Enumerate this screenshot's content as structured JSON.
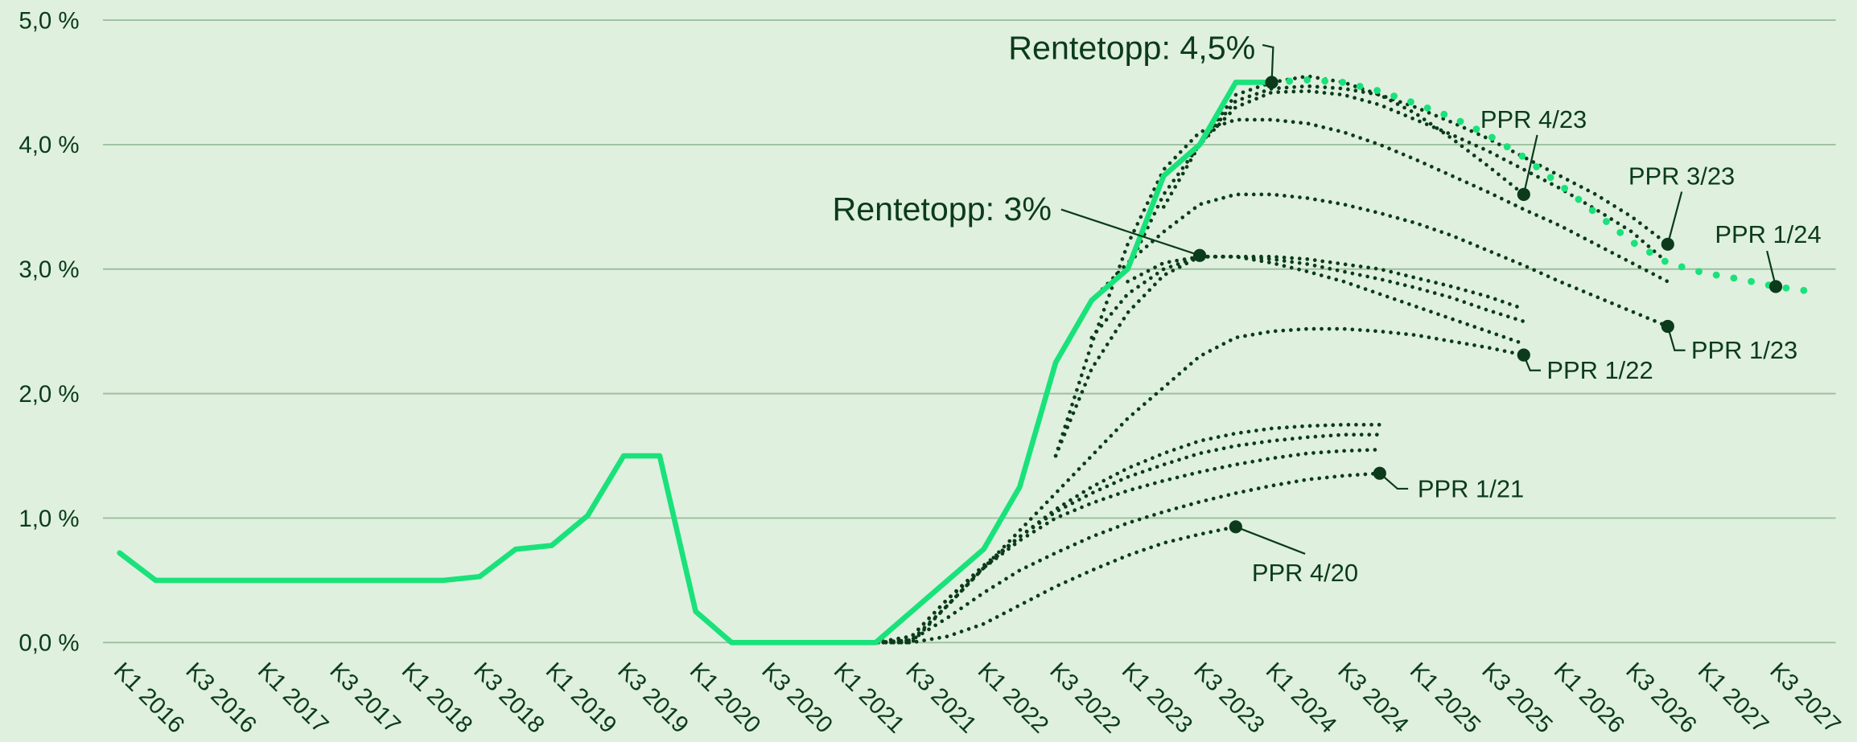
{
  "chart_data": {
    "type": "line",
    "categories": [
      "K1 2016",
      null,
      "K3 2016",
      null,
      "K1 2017",
      null,
      "K3 2017",
      null,
      "K1 2018",
      null,
      "K3 2018",
      null,
      "K1 2019",
      null,
      "K3 2019",
      null,
      "K1 2020",
      null,
      "K3 2020",
      null,
      "K1 2021",
      null,
      "K3 2021",
      null,
      "K1 2022",
      null,
      "K3 2022",
      null,
      "K1 2023",
      null,
      "K3 2023",
      null,
      "K1 2024",
      null,
      "K3 2024",
      null,
      "K1 2025",
      null,
      "K3 2025",
      null,
      "K1 2026",
      null,
      "K3 2026",
      null,
      "K1 2027",
      null,
      "K3 2027",
      null
    ],
    "ylim": [
      0,
      5
    ],
    "yticks": [
      {
        "value": 0,
        "label": "0,0 %"
      },
      {
        "value": 1,
        "label": "1,0 %"
      },
      {
        "value": 2,
        "label": "2,0 %"
      },
      {
        "value": 3,
        "label": "3,0 %"
      },
      {
        "value": 4,
        "label": "4,0 %"
      },
      {
        "value": 5,
        "label": "5,0 %"
      }
    ],
    "grid": true,
    "series": [
      {
        "color": "#19e27a",
        "line_style": "solid",
        "values": [
          0.72,
          0.5,
          0.5,
          0.5,
          0.5,
          0.5,
          0.5,
          0.5,
          0.5,
          0.5,
          0.53,
          0.75,
          0.78,
          1.02,
          1.5,
          1.5,
          0.25,
          0,
          0,
          0,
          0,
          0,
          0.25,
          0.5,
          0.75,
          1.25,
          2.25,
          2.75,
          3.0,
          3.75,
          4.0,
          4.5,
          4.5,
          null,
          null,
          null,
          null,
          null,
          null,
          null,
          null,
          null,
          null,
          null,
          null,
          null,
          null,
          null
        ]
      },
      {
        "name": "PPR 1/24",
        "color": "#19e27a",
        "line_style": "dotted",
        "values": [
          null,
          null,
          null,
          null,
          null,
          null,
          null,
          null,
          null,
          null,
          null,
          null,
          null,
          null,
          null,
          null,
          null,
          null,
          null,
          null,
          null,
          null,
          null,
          null,
          null,
          null,
          null,
          null,
          null,
          null,
          null,
          null,
          4.5,
          4.52,
          4.5,
          4.43,
          4.33,
          4.22,
          4.08,
          3.9,
          3.68,
          3.45,
          3.22,
          3.05,
          2.97,
          2.92,
          2.86,
          2.82
        ]
      },
      {
        "name": "PPR 4/20",
        "color": "#0b3b1a",
        "line_style": "dotted",
        "values": [
          null,
          null,
          null,
          null,
          null,
          null,
          null,
          null,
          null,
          null,
          null,
          null,
          null,
          null,
          null,
          null,
          null,
          null,
          null,
          null,
          0,
          0,
          0,
          0.05,
          0.15,
          0.3,
          0.45,
          0.58,
          0.7,
          0.8,
          0.87,
          0.93,
          null,
          null,
          null,
          null,
          null,
          null,
          null,
          null,
          null,
          null,
          null,
          null,
          null,
          null,
          null,
          null
        ]
      },
      {
        "name": "PPR 1/21",
        "color": "#0b3b1a",
        "line_style": "dotted",
        "values": [
          null,
          null,
          null,
          null,
          null,
          null,
          null,
          null,
          null,
          null,
          null,
          null,
          null,
          null,
          null,
          null,
          null,
          null,
          null,
          null,
          0,
          0,
          0.02,
          0.2,
          0.4,
          0.58,
          0.72,
          0.85,
          0.96,
          1.05,
          1.13,
          1.2,
          1.26,
          1.31,
          1.34,
          1.36,
          null,
          null,
          null,
          null,
          null,
          null,
          null,
          null,
          null,
          null,
          null,
          null
        ]
      },
      {
        "color": "#0b3b1a",
        "line_style": "dotted",
        "values": [
          null,
          null,
          null,
          null,
          null,
          null,
          null,
          null,
          null,
          null,
          null,
          null,
          null,
          null,
          null,
          null,
          null,
          null,
          null,
          null,
          null,
          0,
          0.02,
          0.3,
          0.6,
          0.82,
          1.0,
          1.12,
          1.22,
          1.3,
          1.37,
          1.43,
          1.48,
          1.52,
          1.54,
          1.55,
          null,
          null,
          null,
          null,
          null,
          null,
          null,
          null,
          null,
          null,
          null,
          null
        ]
      },
      {
        "color": "#0b3b1a",
        "line_style": "dotted",
        "values": [
          null,
          null,
          null,
          null,
          null,
          null,
          null,
          null,
          null,
          null,
          null,
          null,
          null,
          null,
          null,
          null,
          null,
          null,
          null,
          null,
          null,
          0,
          0.05,
          0.35,
          0.62,
          0.85,
          1.05,
          1.2,
          1.33,
          1.43,
          1.52,
          1.58,
          1.62,
          1.65,
          1.67,
          1.67,
          null,
          null,
          null,
          null,
          null,
          null,
          null,
          null,
          null,
          null,
          null,
          null
        ]
      },
      {
        "color": "#0b3b1a",
        "line_style": "dotted",
        "values": [
          null,
          null,
          null,
          null,
          null,
          null,
          null,
          null,
          null,
          null,
          null,
          null,
          null,
          null,
          null,
          null,
          null,
          null,
          null,
          null,
          null,
          0,
          0.05,
          0.35,
          0.6,
          0.85,
          1.07,
          1.25,
          1.4,
          1.52,
          1.62,
          1.68,
          1.72,
          1.74,
          1.75,
          1.75,
          null,
          null,
          null,
          null,
          null,
          null,
          null,
          null,
          null,
          null,
          null,
          null
        ]
      },
      {
        "name": "PPR 1/22",
        "color": "#0b3b1a",
        "line_style": "dotted",
        "values": [
          null,
          null,
          null,
          null,
          null,
          null,
          null,
          null,
          null,
          null,
          null,
          null,
          null,
          null,
          null,
          null,
          null,
          null,
          null,
          null,
          null,
          0,
          0,
          0.3,
          0.6,
          0.9,
          1.2,
          1.5,
          1.8,
          2.05,
          2.3,
          2.45,
          2.5,
          2.52,
          2.52,
          2.5,
          2.47,
          2.42,
          2.37,
          2.31,
          null,
          null,
          null,
          null,
          null,
          null,
          null,
          null
        ]
      },
      {
        "color": "#0b3b1a",
        "line_style": "dotted",
        "values": [
          null,
          null,
          null,
          null,
          null,
          null,
          null,
          null,
          null,
          null,
          null,
          null,
          null,
          null,
          null,
          null,
          null,
          null,
          null,
          null,
          null,
          null,
          null,
          null,
          null,
          null,
          1.5,
          2.2,
          2.65,
          2.95,
          3.1,
          3.1,
          3.05,
          2.98,
          2.9,
          2.8,
          2.7,
          2.6,
          2.5,
          2.4,
          null,
          null,
          null,
          null,
          null,
          null,
          null,
          null
        ]
      },
      {
        "color": "#0b3b1a",
        "line_style": "dotted",
        "values": [
          null,
          null,
          null,
          null,
          null,
          null,
          null,
          null,
          null,
          null,
          null,
          null,
          null,
          null,
          null,
          null,
          null,
          null,
          null,
          null,
          null,
          null,
          null,
          null,
          null,
          null,
          null,
          2.45,
          2.8,
          3.0,
          3.1,
          3.1,
          3.08,
          3.04,
          2.98,
          2.92,
          2.85,
          2.77,
          2.67,
          2.58,
          null,
          null,
          null,
          null,
          null,
          null,
          null,
          null
        ]
      },
      {
        "color": "#0b3b1a",
        "line_style": "dotted",
        "values": [
          null,
          null,
          null,
          null,
          null,
          null,
          null,
          null,
          null,
          null,
          null,
          null,
          null,
          null,
          null,
          null,
          null,
          null,
          null,
          null,
          null,
          null,
          null,
          null,
          null,
          null,
          null,
          null,
          2.9,
          3.05,
          3.1,
          3.1,
          3.1,
          3.08,
          3.04,
          3.0,
          2.93,
          2.86,
          2.78,
          2.68,
          null,
          null,
          null,
          null,
          null,
          null,
          null,
          null
        ]
      },
      {
        "name": "PPR 1/23",
        "color": "#0b3b1a",
        "line_style": "dotted",
        "values": [
          null,
          null,
          null,
          null,
          null,
          null,
          null,
          null,
          null,
          null,
          null,
          null,
          null,
          null,
          null,
          null,
          null,
          null,
          null,
          null,
          null,
          null,
          null,
          null,
          null,
          null,
          null,
          2.75,
          3.05,
          3.3,
          3.52,
          3.6,
          3.6,
          3.57,
          3.52,
          3.45,
          3.37,
          3.27,
          3.15,
          3.03,
          2.9,
          2.78,
          2.66,
          2.54,
          null,
          null,
          null,
          null
        ]
      },
      {
        "color": "#0b3b1a",
        "line_style": "dotted",
        "values": [
          null,
          null,
          null,
          null,
          null,
          null,
          null,
          null,
          null,
          null,
          null,
          null,
          null,
          null,
          null,
          null,
          null,
          null,
          null,
          null,
          null,
          null,
          null,
          null,
          null,
          null,
          1.5,
          2.4,
          3.2,
          3.8,
          4.1,
          4.2,
          4.2,
          4.17,
          4.1,
          4.0,
          3.88,
          3.75,
          3.62,
          3.48,
          3.35,
          3.2,
          3.05,
          2.9,
          null,
          null,
          null,
          null
        ]
      },
      {
        "color": "#0b3b1a",
        "line_style": "dotted",
        "values": [
          null,
          null,
          null,
          null,
          null,
          null,
          null,
          null,
          null,
          null,
          null,
          null,
          null,
          null,
          null,
          null,
          null,
          null,
          null,
          null,
          null,
          null,
          null,
          null,
          null,
          null,
          null,
          null,
          null,
          3.5,
          4.0,
          4.3,
          4.42,
          4.43,
          4.4,
          4.32,
          4.2,
          4.08,
          3.95,
          3.8,
          3.65,
          3.48,
          3.3,
          3.05,
          null,
          null,
          null,
          null
        ]
      },
      {
        "name": "PPR 3/23",
        "color": "#0b3b1a",
        "line_style": "dotted",
        "values": [
          null,
          null,
          null,
          null,
          null,
          null,
          null,
          null,
          null,
          null,
          null,
          null,
          null,
          null,
          null,
          null,
          null,
          null,
          null,
          null,
          null,
          null,
          null,
          null,
          null,
          null,
          null,
          null,
          3.0,
          3.6,
          4.0,
          4.35,
          4.45,
          4.47,
          4.45,
          4.4,
          4.3,
          4.18,
          4.05,
          3.9,
          3.75,
          3.6,
          3.42,
          3.2,
          null,
          null,
          null,
          null
        ]
      },
      {
        "name": "PPR 4/23",
        "color": "#0b3b1a",
        "line_style": "dotted",
        "values": [
          null,
          null,
          null,
          null,
          null,
          null,
          null,
          null,
          null,
          null,
          null,
          null,
          null,
          null,
          null,
          null,
          null,
          null,
          null,
          null,
          null,
          null,
          null,
          null,
          null,
          null,
          null,
          null,
          null,
          null,
          4.0,
          4.4,
          4.5,
          4.55,
          4.5,
          4.4,
          4.25,
          4.05,
          3.83,
          3.6,
          null,
          null,
          null,
          null,
          null,
          null,
          null,
          null
        ]
      }
    ],
    "annotations": [
      {
        "text": "Rentetopp: 4,5%",
        "x": "K1 2024",
        "y": 4.5
      },
      {
        "text": "Rentetopp: 3%",
        "x": "K3 2023",
        "y": 3.11
      }
    ]
  }
}
